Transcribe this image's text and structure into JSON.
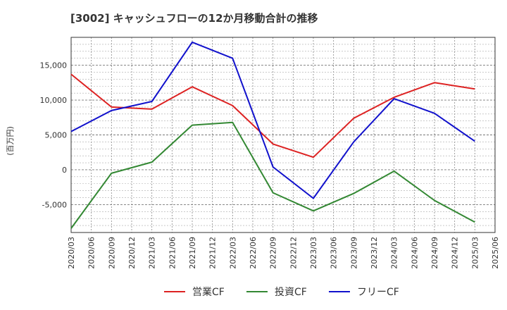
{
  "chart_data": {
    "type": "line",
    "title": "[3002]  キャッシュフローの12か月移動合計の推移",
    "xlabel": "",
    "ylabel": "(百万円)",
    "ylim": [
      -9000,
      19000
    ],
    "yticks": [
      -5000,
      0,
      5000,
      10000,
      15000
    ],
    "ytick_labels": [
      "-5,000",
      "0",
      "5,000",
      "10,000",
      "15,000"
    ],
    "categories": [
      "2020/03",
      "2020/06",
      "2020/09",
      "2020/12",
      "2021/03",
      "2021/06",
      "2021/09",
      "2021/12",
      "2022/03",
      "2022/06",
      "2022/09",
      "2022/12",
      "2023/03",
      "2023/06",
      "2023/09",
      "2023/12",
      "2024/03",
      "2024/06",
      "2024/09",
      "2024/12",
      "2025/03",
      "2025/06"
    ],
    "series": [
      {
        "name": "営業CF",
        "color": "#dd2222",
        "values": [
          13700,
          null,
          9000,
          null,
          8700,
          null,
          11900,
          null,
          9200,
          null,
          3700,
          null,
          1800,
          null,
          7400,
          null,
          10400,
          null,
          12500,
          null,
          11600,
          null
        ]
      },
      {
        "name": "投資CF",
        "color": "#338833",
        "values": [
          -8400,
          null,
          -500,
          null,
          1100,
          null,
          6400,
          null,
          6800,
          null,
          -3300,
          null,
          -5900,
          null,
          -3400,
          null,
          -200,
          null,
          -4400,
          null,
          -7500,
          null
        ]
      },
      {
        "name": "フリーCF",
        "color": "#1111cc",
        "values": [
          5500,
          null,
          8500,
          null,
          9800,
          null,
          18300,
          null,
          16000,
          null,
          400,
          null,
          -4100,
          null,
          4000,
          null,
          10200,
          null,
          8100,
          null,
          4100,
          null
        ]
      }
    ],
    "grid": true,
    "legend_position": "bottom"
  }
}
